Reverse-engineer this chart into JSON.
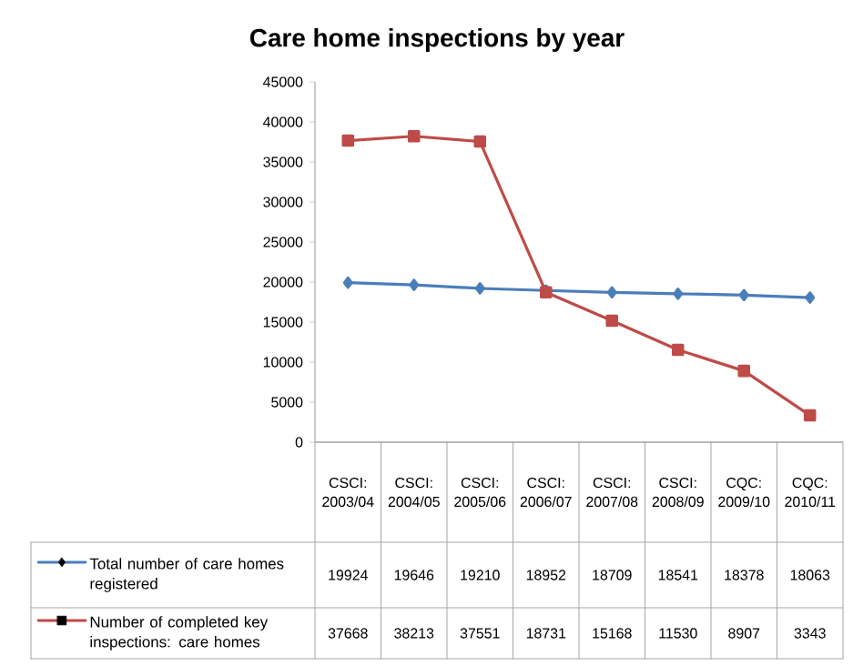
{
  "chart_data": {
    "type": "line",
    "title": "Care home inspections by year",
    "categories": [
      "CSCI: 2003/04",
      "CSCI: 2004/05",
      "CSCI: 2005/06",
      "CSCI: 2006/07",
      "CSCI: 2007/08",
      "CSCI: 2008/09",
      "CQC: 2009/10",
      "CQC: 2010/11"
    ],
    "series": [
      {
        "name": "Total number of care homes registered",
        "color": "#4a7ebb",
        "marker": "diamond",
        "values": [
          19924,
          19646,
          19210,
          18952,
          18709,
          18541,
          18378,
          18063
        ]
      },
      {
        "name": "Number of completed key inspections: care homes",
        "color": "#be4b48",
        "marker": "square",
        "values": [
          37668,
          38213,
          37551,
          18731,
          15168,
          11530,
          8907,
          3343
        ]
      }
    ],
    "ylim": [
      0,
      45000
    ],
    "yticks": [
      0,
      5000,
      10000,
      15000,
      20000,
      25000,
      30000,
      35000,
      40000,
      45000
    ],
    "grid": false,
    "legend": "bottom",
    "data_labels": true,
    "line_style": "solid"
  }
}
